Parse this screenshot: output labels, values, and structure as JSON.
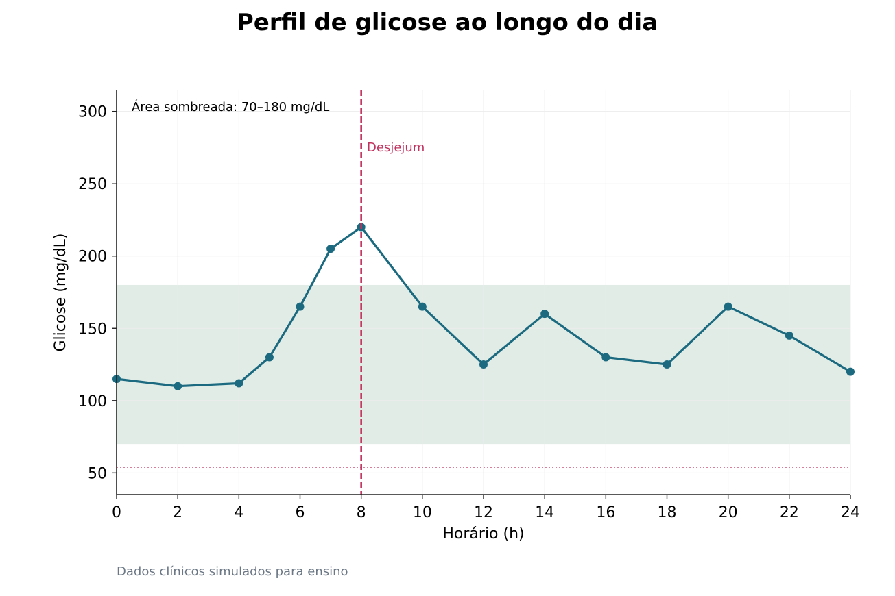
{
  "chart_data": {
    "type": "line",
    "title": "Perfil de glicose ao longo do dia",
    "xlabel": "Horário (h)",
    "ylabel": "Glicose (mg/dL)",
    "xlim": [
      0,
      24
    ],
    "ylim": [
      35,
      315
    ],
    "x_ticks": [
      0,
      2,
      4,
      6,
      8,
      10,
      12,
      14,
      16,
      18,
      20,
      22,
      24
    ],
    "y_ticks": [
      50,
      100,
      150,
      200,
      250,
      300
    ],
    "grid": true,
    "series": [
      {
        "x": [
          0,
          2,
          4,
          5,
          6,
          7,
          8,
          10,
          12,
          14,
          16,
          18,
          20,
          22,
          24
        ],
        "values": [
          115,
          110,
          112,
          130,
          165,
          205,
          220,
          165,
          125,
          160,
          130,
          125,
          165,
          145,
          120
        ]
      }
    ],
    "target_band": {
      "min": 70,
      "max": 180
    },
    "vline": {
      "x": 8,
      "label": "Desjejum"
    },
    "hline": {
      "y": 54
    },
    "band_note": "Área sombreada: 70–180 mg/dL",
    "caption": "Dados clínicos simulados para ensino",
    "colors": {
      "line": "#1b6a80",
      "band": "#e1ece6",
      "event": "#c0335f",
      "grid": "#ececec",
      "caption": "#6b7785"
    }
  }
}
